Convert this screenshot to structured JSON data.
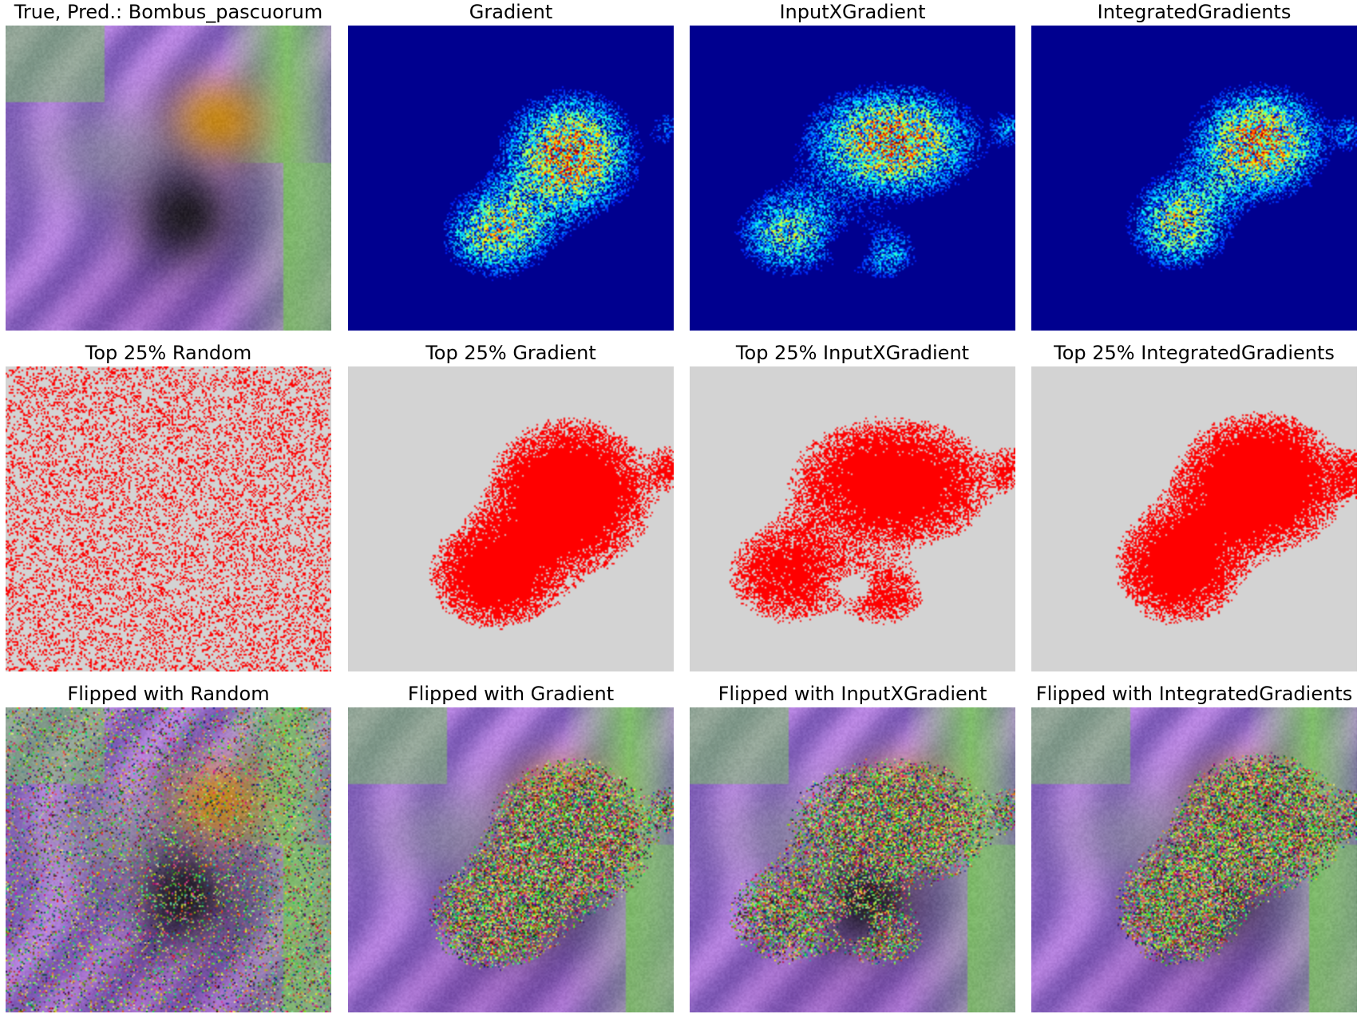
{
  "figure": {
    "rows": [
      {
        "panels": [
          {
            "title": "True, Pred.: Bombus_pascuorum",
            "kind": "photo"
          },
          {
            "title": "Gradient",
            "kind": "heatmap",
            "method": "gradient"
          },
          {
            "title": "InputXGradient",
            "kind": "heatmap",
            "method": "inputxgradient"
          },
          {
            "title": "IntegratedGradients",
            "kind": "heatmap",
            "method": "integratedgradients"
          }
        ]
      },
      {
        "panels": [
          {
            "title": "Top 25% Random",
            "kind": "mask",
            "method": "random"
          },
          {
            "title": "Top 25% Gradient",
            "kind": "mask",
            "method": "gradient"
          },
          {
            "title": "Top 25% InputXGradient",
            "kind": "mask",
            "method": "inputxgradient"
          },
          {
            "title": "Top 25% IntegratedGradients",
            "kind": "mask",
            "method": "integratedgradients"
          }
        ]
      },
      {
        "panels": [
          {
            "title": "Flipped with Random",
            "kind": "flipped",
            "method": "random"
          },
          {
            "title": "Flipped with Gradient",
            "kind": "flipped",
            "method": "gradient"
          },
          {
            "title": "Flipped with InputXGradient",
            "kind": "flipped",
            "method": "inputxgradient"
          },
          {
            "title": "Flipped with IntegratedGradients",
            "kind": "flipped",
            "method": "integratedgradients"
          }
        ]
      }
    ]
  },
  "colors": {
    "heatmap_background": "#00008f",
    "mask_background": "#d3d3d3",
    "mask_foreground": "#ff0000",
    "petal_purple": "#a87ad8",
    "leaf_green": "#7fbf6a",
    "bee_orange": "#c98a1a",
    "bee_dark": "#1d1a1f",
    "wing_grey": "#8d8aa3"
  }
}
